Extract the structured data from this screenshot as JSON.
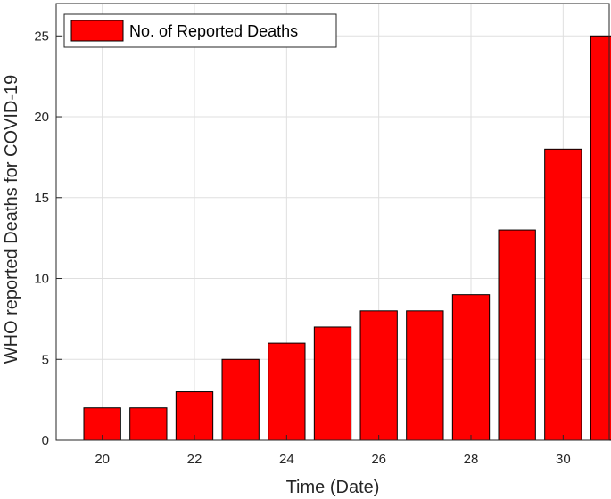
{
  "chart_data": {
    "type": "bar",
    "x": [
      20,
      21,
      22,
      23,
      24,
      25,
      26,
      27,
      28,
      29,
      30,
      31
    ],
    "values": [
      2,
      2,
      3,
      5,
      6,
      7,
      8,
      8,
      9,
      13,
      18,
      25
    ],
    "series_name": "No. of Reported Deaths",
    "xlabel": "Time (Date)",
    "ylabel": "WHO reported Deaths for COVID-19",
    "xlim": [
      19,
      31
    ],
    "ylim": [
      0,
      27
    ],
    "xticks": [
      20,
      22,
      24,
      26,
      28,
      30
    ],
    "yticks": [
      0,
      5,
      10,
      15,
      20,
      25
    ],
    "grid": true,
    "legend_position": "top-left",
    "colors": {
      "bar": "#ff0000",
      "bar_edge": "#000000",
      "grid": "#dfdfdf",
      "axis": "#262626"
    }
  }
}
